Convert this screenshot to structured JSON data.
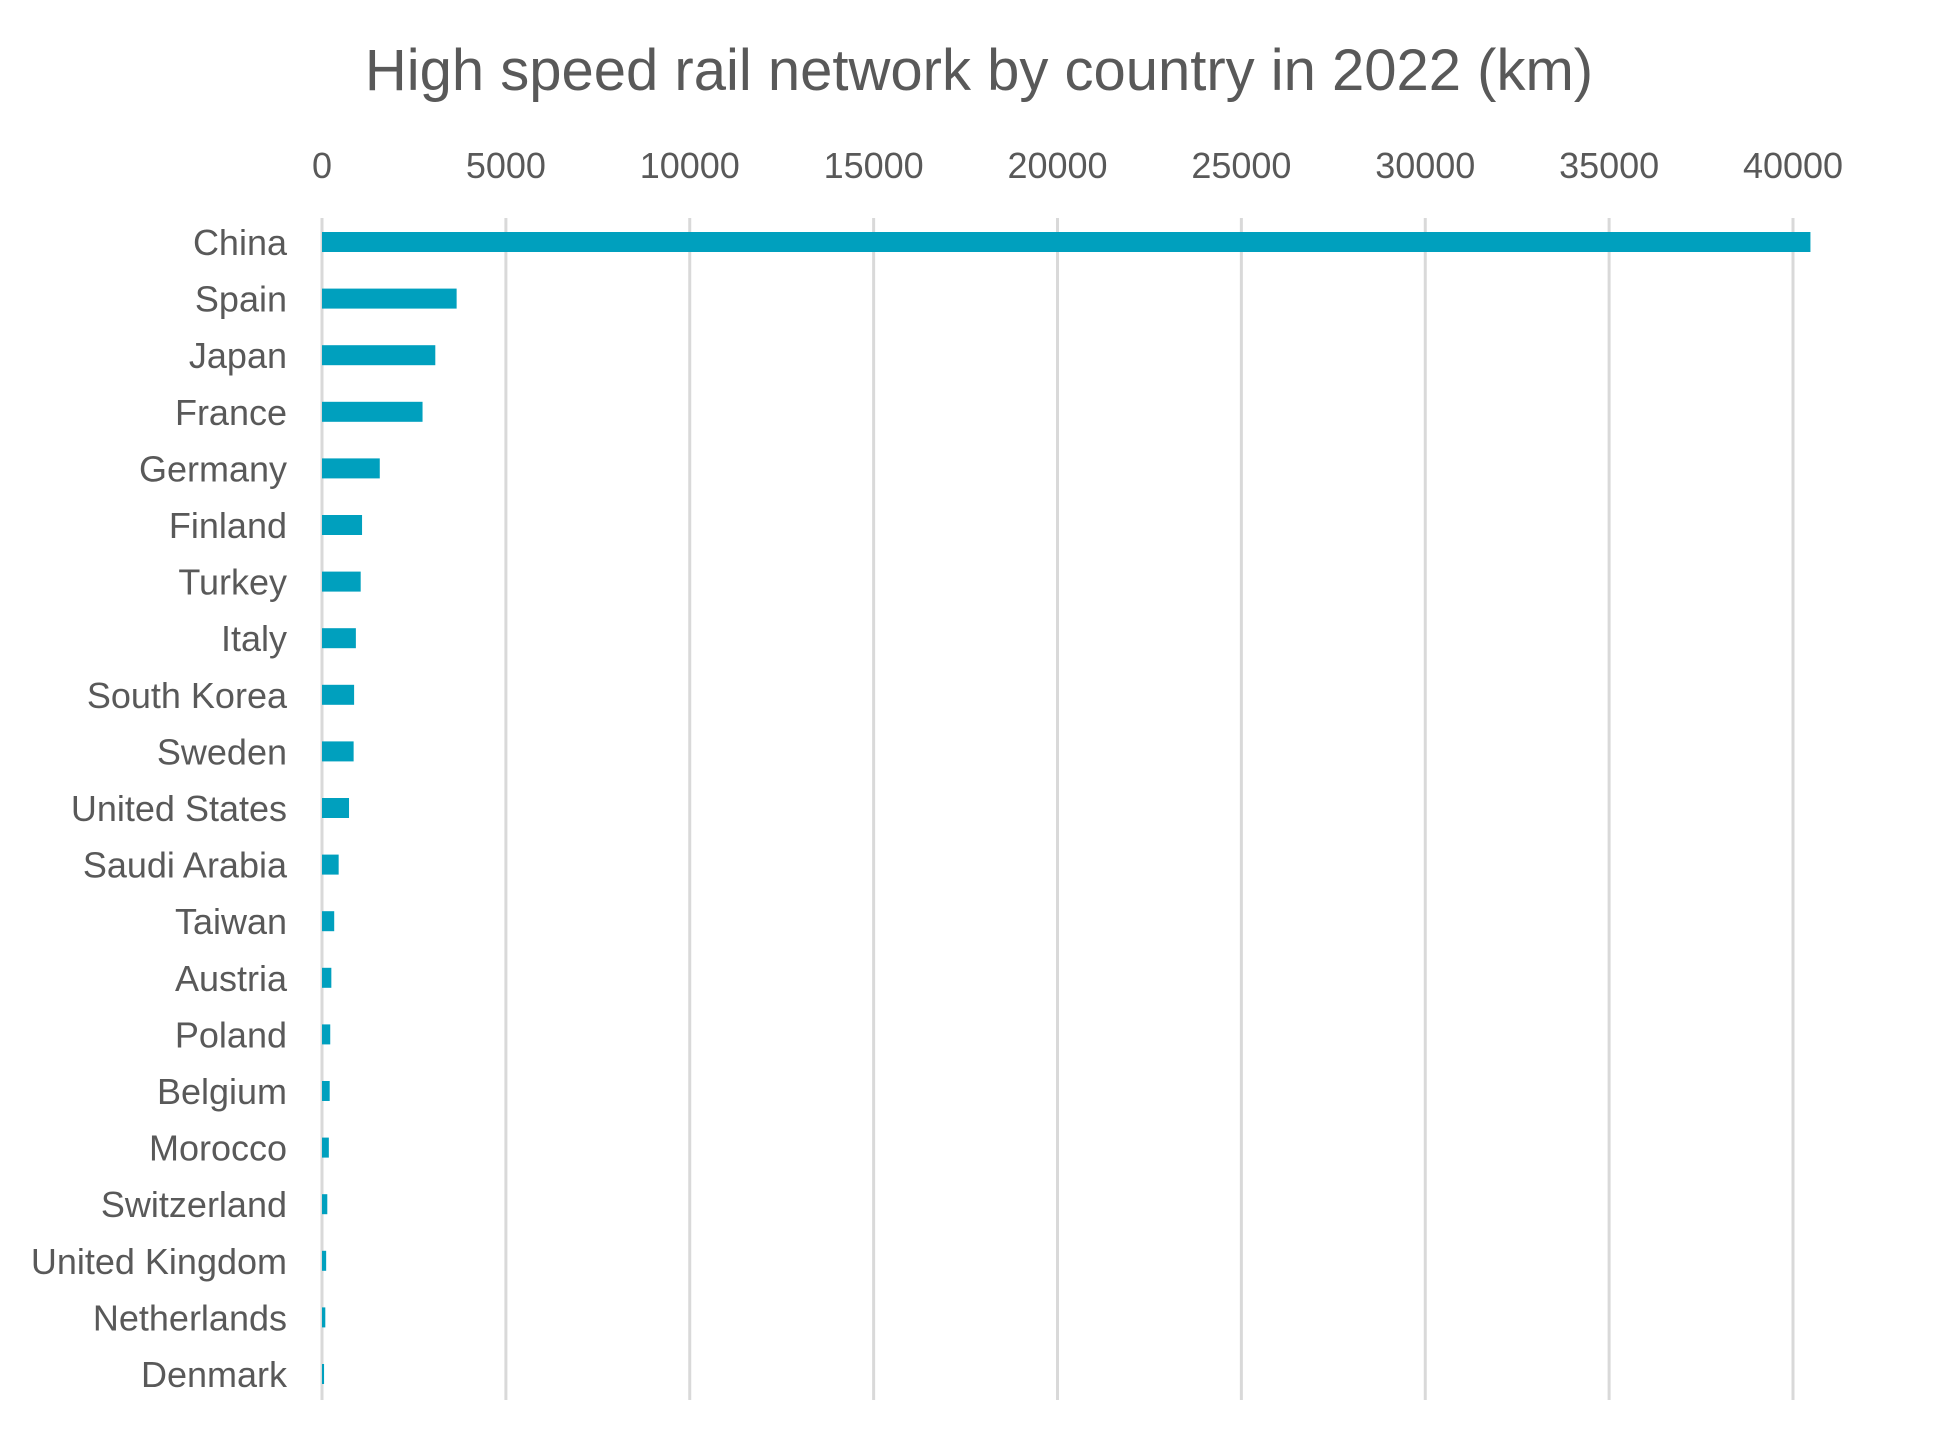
{
  "chart_data": {
    "type": "bar",
    "orientation": "horizontal",
    "title": "High speed rail network by country in 2022 (km)",
    "xlabel": "",
    "ylabel": "",
    "xlim": [
      0,
      42000
    ],
    "x_ticks": [
      "0",
      "5000",
      "10000",
      "15000",
      "20000",
      "25000",
      "30000",
      "35000",
      "40000"
    ],
    "x_axis_position": "top",
    "grid": "vertical",
    "legend": "none",
    "bar_color": "#00A0BE",
    "categories": [
      "China",
      "Spain",
      "Japan",
      "France",
      "Germany",
      "Finland",
      "Turkey",
      "Italy",
      "South Korea",
      "Sweden",
      "United States",
      "Saudi Arabia",
      "Taiwan",
      "Austria",
      "Poland",
      "Belgium",
      "Morocco",
      "Switzerland",
      "United Kingdom",
      "Netherlands",
      "Denmark"
    ],
    "values": [
      40474,
      3661,
      3081,
      2734,
      1571,
      1089,
      1052,
      921,
      873,
      860,
      735,
      453,
      332,
      254,
      224,
      209,
      186,
      144,
      113,
      90,
      56
    ]
  }
}
